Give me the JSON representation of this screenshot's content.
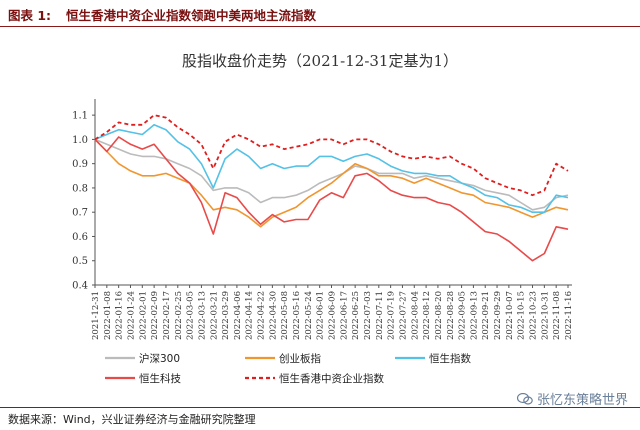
{
  "header": {
    "label": "图表 1:",
    "title": "恒生香港中资企业指数领跑中美两地主流指数"
  },
  "source": "数据来源：Wind，兴业证券经济与金融研究院整理",
  "watermark": "张忆东策略世界",
  "chart_data": {
    "type": "line",
    "title": "股指收盘价走势（2021-12-31定基为1）",
    "ylim": [
      0.4,
      1.15
    ],
    "yticks": [
      "0.4",
      "0.5",
      "0.6",
      "0.7",
      "0.8",
      "0.9",
      "1.0",
      "1.1"
    ],
    "x": [
      "2021-12-31",
      "2022-01-08",
      "2022-01-16",
      "2022-01-24",
      "2022-02-01",
      "2022-02-09",
      "2022-02-17",
      "2022-02-25",
      "2022-03-05",
      "2022-03-13",
      "2022-03-21",
      "2022-03-29",
      "2022-04-06",
      "2022-04-14",
      "2022-04-22",
      "2022-04-30",
      "2022-05-08",
      "2022-05-16",
      "2022-05-24",
      "2022-06-01",
      "2022-06-09",
      "2022-06-17",
      "2022-06-25",
      "2022-07-03",
      "2022-07-11",
      "2022-07-19",
      "2022-07-27",
      "2022-08-04",
      "2022-08-12",
      "2022-08-20",
      "2022-08-28",
      "2022-09-05",
      "2022-09-13",
      "2022-09-21",
      "2022-09-29",
      "2022-10-07",
      "2022-10-15",
      "2022-10-23",
      "2022-10-31",
      "2022-11-08",
      "2022-11-16"
    ],
    "legend_position": "bottom",
    "series": [
      {
        "name": "沪深300",
        "color": "#bbbbbb",
        "dash": false,
        "values": [
          1.0,
          0.98,
          0.96,
          0.94,
          0.93,
          0.93,
          0.92,
          0.9,
          0.88,
          0.85,
          0.79,
          0.8,
          0.8,
          0.78,
          0.74,
          0.76,
          0.76,
          0.77,
          0.79,
          0.82,
          0.84,
          0.86,
          0.89,
          0.88,
          0.86,
          0.86,
          0.86,
          0.84,
          0.85,
          0.84,
          0.83,
          0.82,
          0.81,
          0.79,
          0.78,
          0.77,
          0.74,
          0.71,
          0.72,
          0.76,
          0.77
        ]
      },
      {
        "name": "创业板指",
        "color": "#f0962f",
        "dash": false,
        "values": [
          1.0,
          0.95,
          0.9,
          0.87,
          0.85,
          0.85,
          0.86,
          0.84,
          0.82,
          0.77,
          0.71,
          0.72,
          0.71,
          0.68,
          0.64,
          0.68,
          0.7,
          0.72,
          0.76,
          0.79,
          0.82,
          0.86,
          0.9,
          0.88,
          0.85,
          0.85,
          0.84,
          0.82,
          0.84,
          0.82,
          0.8,
          0.78,
          0.77,
          0.74,
          0.73,
          0.72,
          0.7,
          0.68,
          0.7,
          0.72,
          0.71
        ]
      },
      {
        "name": "恒生指数",
        "color": "#54c1e6",
        "dash": false,
        "values": [
          1.0,
          1.02,
          1.04,
          1.03,
          1.02,
          1.06,
          1.04,
          0.99,
          0.96,
          0.9,
          0.8,
          0.92,
          0.96,
          0.93,
          0.88,
          0.9,
          0.88,
          0.89,
          0.89,
          0.93,
          0.93,
          0.91,
          0.93,
          0.94,
          0.92,
          0.89,
          0.87,
          0.86,
          0.86,
          0.85,
          0.85,
          0.82,
          0.8,
          0.77,
          0.76,
          0.73,
          0.72,
          0.7,
          0.7,
          0.77,
          0.76
        ]
      },
      {
        "name": "恒生科技",
        "color": "#e84a4a",
        "dash": false,
        "values": [
          1.0,
          0.95,
          1.01,
          0.98,
          0.96,
          0.98,
          0.92,
          0.86,
          0.82,
          0.74,
          0.61,
          0.78,
          0.76,
          0.7,
          0.65,
          0.69,
          0.66,
          0.67,
          0.67,
          0.75,
          0.78,
          0.76,
          0.85,
          0.86,
          0.83,
          0.79,
          0.77,
          0.76,
          0.76,
          0.74,
          0.73,
          0.7,
          0.66,
          0.62,
          0.61,
          0.58,
          0.54,
          0.5,
          0.53,
          0.64,
          0.63
        ]
      },
      {
        "name": "恒生香港中资企业指数",
        "color": "#e01e1e",
        "dash": true,
        "values": [
          1.0,
          1.03,
          1.07,
          1.06,
          1.06,
          1.1,
          1.09,
          1.05,
          1.02,
          0.98,
          0.88,
          0.99,
          1.02,
          1.0,
          0.97,
          0.98,
          0.96,
          0.97,
          0.98,
          1.0,
          1.0,
          0.98,
          1.0,
          1.0,
          0.98,
          0.95,
          0.93,
          0.92,
          0.93,
          0.92,
          0.93,
          0.9,
          0.88,
          0.84,
          0.82,
          0.8,
          0.79,
          0.77,
          0.79,
          0.9,
          0.87
        ]
      }
    ]
  }
}
